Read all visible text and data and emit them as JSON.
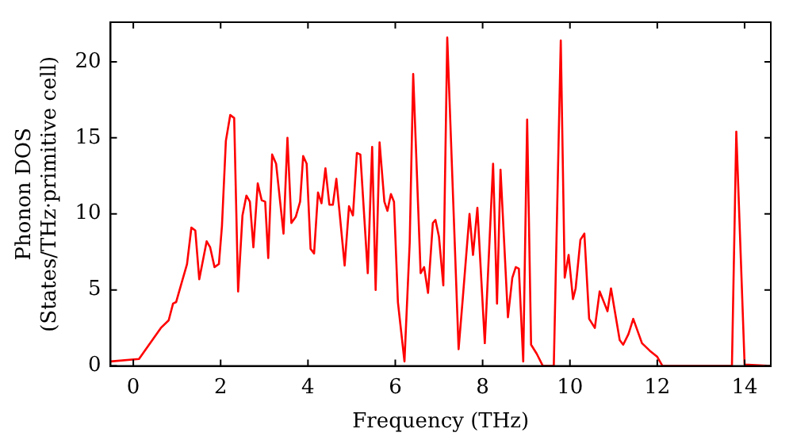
{
  "chart_data": {
    "type": "line",
    "xlabel": "Frequency (THz)",
    "ylabel": "Phonon DOS\n(States/THz·primitive cell)",
    "xlim": [
      -0.52,
      14.6
    ],
    "xticks": [
      0,
      2,
      4,
      6,
      8,
      10,
      12,
      14
    ],
    "ylim": [
      0,
      22.6
    ],
    "yticks": [
      0,
      5,
      10,
      15,
      20
    ],
    "grid": false,
    "legend": false,
    "marker": "none",
    "line_style": "solid",
    "series": [
      {
        "color": "#ff0000",
        "x": [
          -0.52,
          0.13,
          0.63,
          0.81,
          0.91,
          0.98,
          1.09,
          1.23,
          1.33,
          1.42,
          1.51,
          1.68,
          1.76,
          1.86,
          1.96,
          2.03,
          2.12,
          2.22,
          2.31,
          2.4,
          2.5,
          2.59,
          2.67,
          2.75,
          2.85,
          2.94,
          3.02,
          3.09,
          3.18,
          3.27,
          3.44,
          3.53,
          3.62,
          3.72,
          3.82,
          3.89,
          3.97,
          4.06,
          4.14,
          4.23,
          4.31,
          4.4,
          4.49,
          4.57,
          4.65,
          4.84,
          4.94,
          5.03,
          5.12,
          5.2,
          5.37,
          5.47,
          5.55,
          5.64,
          5.75,
          5.82,
          5.9,
          5.97,
          6.06,
          6.21,
          6.33,
          6.41,
          6.58,
          6.66,
          6.75,
          6.86,
          6.92,
          7.0,
          7.1,
          7.19,
          7.45,
          7.55,
          7.7,
          7.78,
          7.88,
          8.05,
          8.24,
          8.33,
          8.41,
          8.58,
          8.68,
          8.76,
          8.83,
          8.93,
          9.02,
          9.11,
          9.24,
          9.38,
          9.63,
          9.79,
          9.88,
          9.97,
          10.07,
          10.13,
          10.24,
          10.33,
          10.44,
          10.57,
          10.68,
          10.86,
          10.94,
          11.14,
          11.22,
          11.34,
          11.45,
          11.65,
          11.83,
          12.0,
          12.12,
          13.71,
          13.81,
          14.0,
          14.6
        ],
        "values": [
          0.3,
          0.46,
          2.5,
          3.0,
          4.1,
          4.2,
          5.3,
          6.7,
          9.1,
          8.9,
          5.7,
          8.2,
          7.8,
          6.5,
          6.7,
          9.2,
          14.8,
          16.5,
          16.3,
          4.9,
          9.9,
          11.2,
          10.8,
          7.8,
          12.0,
          10.9,
          10.8,
          7.1,
          13.9,
          13.3,
          8.7,
          15.0,
          9.4,
          9.8,
          10.8,
          13.8,
          13.3,
          7.7,
          7.4,
          11.4,
          10.7,
          13.0,
          10.6,
          10.6,
          12.3,
          6.6,
          10.5,
          9.9,
          14.0,
          13.9,
          6.1,
          14.4,
          5.0,
          14.7,
          10.8,
          10.2,
          11.3,
          10.8,
          4.2,
          0.3,
          8.1,
          19.2,
          6.1,
          6.5,
          4.8,
          9.4,
          9.6,
          8.5,
          5.3,
          21.6,
          1.1,
          4.6,
          10.0,
          7.3,
          10.4,
          1.5,
          13.3,
          4.1,
          12.9,
          3.2,
          5.8,
          6.5,
          6.4,
          0.3,
          16.2,
          1.4,
          0.8,
          0,
          0,
          21.4,
          5.8,
          7.3,
          4.4,
          5.1,
          8.3,
          8.7,
          3.1,
          2.5,
          4.9,
          3.6,
          5.1,
          1.7,
          1.4,
          2.1,
          3.1,
          1.5,
          1.0,
          0.6,
          0,
          0,
          15.4,
          0.1,
          0
        ]
      }
    ]
  }
}
